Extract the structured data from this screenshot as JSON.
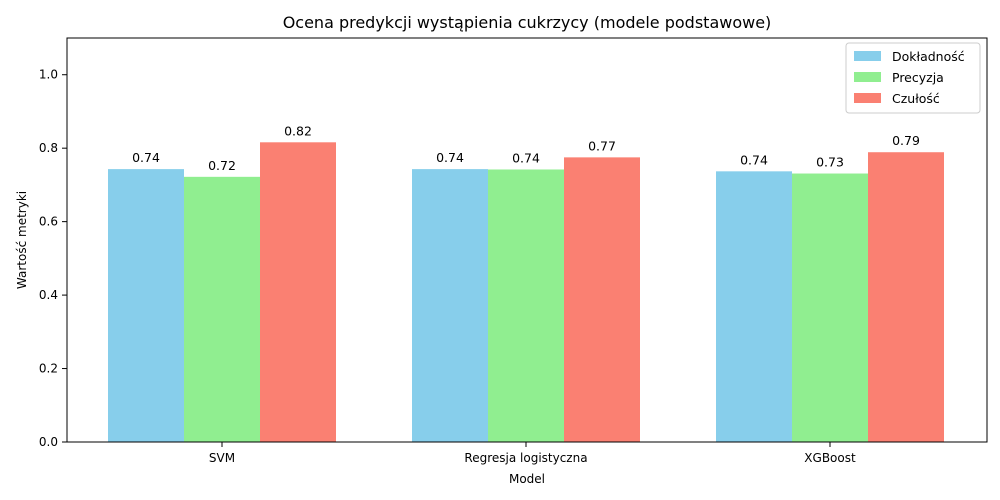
{
  "chart_data": {
    "type": "bar",
    "title": "Ocena predykcji wystąpienia cukrzycy (modele podstawowe)",
    "xlabel": "Model",
    "ylabel": "Wartość metryki",
    "categories": [
      "SVM",
      "Regresja logistyczna",
      "XGBoost"
    ],
    "series": [
      {
        "name": "Dokładność",
        "color": "#87CEEB",
        "values": [
          0.743,
          0.743,
          0.737
        ],
        "labels": [
          "0.74",
          "0.74",
          "0.74"
        ]
      },
      {
        "name": "Precyzja",
        "color": "#90EE90",
        "values": [
          0.722,
          0.742,
          0.731
        ],
        "labels": [
          "0.72",
          "0.74",
          "0.73"
        ]
      },
      {
        "name": "Czułość",
        "color": "#FA8072",
        "values": [
          0.816,
          0.775,
          0.789
        ],
        "labels": [
          "0.82",
          "0.77",
          "0.79"
        ]
      }
    ],
    "ylim": [
      0,
      1.1
    ],
    "yticks": [
      0.0,
      0.2,
      0.4,
      0.6,
      0.8,
      1.0
    ],
    "ytick_labels": [
      "0.0",
      "0.2",
      "0.4",
      "0.6",
      "0.8",
      "1.0"
    ],
    "grid": false,
    "legend_position": "top-right"
  }
}
